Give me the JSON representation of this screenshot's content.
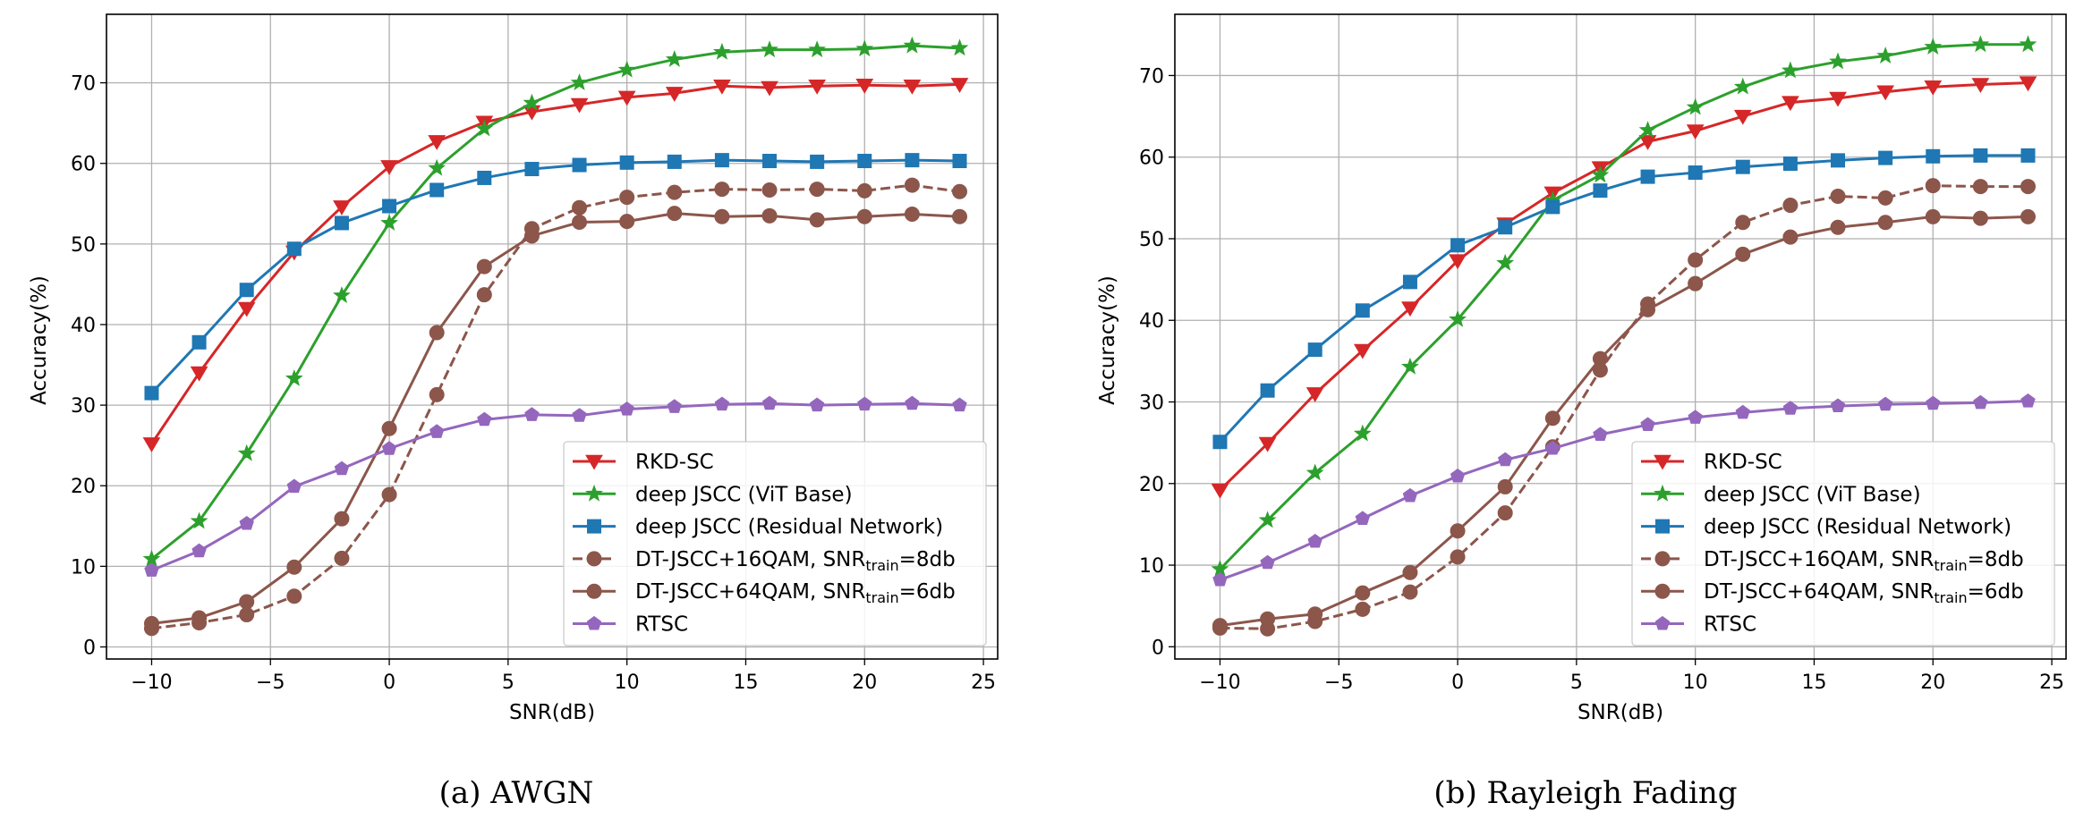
{
  "chart_data": [
    {
      "type": "line",
      "caption": "(a) AWGN",
      "xlabel": "SNR(dB)",
      "ylabel": "Accuracy(%)",
      "xlim": [
        -11.9,
        25.6
      ],
      "ylim": [
        -1.5,
        78.5
      ],
      "xticks": [
        -10,
        -5,
        0,
        5,
        10,
        15,
        20,
        25
      ],
      "xtick_labels": [
        "−10",
        "−5",
        "0",
        "5",
        "10",
        "15",
        "20",
        "25"
      ],
      "yticks": [
        0,
        10,
        20,
        30,
        40,
        50,
        60,
        70
      ],
      "grid": true,
      "legend_position": "lower-right",
      "x": [
        -10,
        -8,
        -6,
        -4,
        -2,
        0,
        2,
        4,
        6,
        8,
        10,
        12,
        14,
        16,
        18,
        20,
        22,
        24
      ],
      "series": [
        {
          "name": "RKD-SC",
          "color": "#d62728",
          "marker": "triangle-down",
          "dashed": false,
          "values": [
            25.2,
            34.0,
            42.0,
            49.0,
            54.6,
            59.6,
            62.7,
            65.1,
            66.4,
            67.3,
            68.2,
            68.7,
            69.6,
            69.4,
            69.6,
            69.7,
            69.6,
            69.8
          ]
        },
        {
          "name": "deep JSCC (ViT Base)",
          "color": "#2ca02c",
          "marker": "star",
          "dashed": false,
          "values": [
            10.9,
            15.6,
            24.0,
            33.3,
            43.6,
            52.6,
            59.4,
            64.3,
            67.5,
            70.0,
            71.6,
            72.9,
            73.8,
            74.1,
            74.1,
            74.2,
            74.6,
            74.3
          ]
        },
        {
          "name": "deep JSCC (Residual Network)",
          "color": "#1f77b4",
          "marker": "square",
          "dashed": false,
          "values": [
            31.5,
            37.8,
            44.3,
            49.4,
            52.6,
            54.7,
            56.7,
            58.2,
            59.3,
            59.8,
            60.1,
            60.2,
            60.4,
            60.3,
            60.2,
            60.3,
            60.4,
            60.3
          ]
        },
        {
          "name": "DT-JSCC+16QAM, SNR",
          "name_sub": "train",
          "name_suffix": "=8db",
          "color": "#8c564b",
          "marker": "circle",
          "dashed": true,
          "values": [
            2.3,
            3.0,
            4.0,
            6.3,
            11.0,
            18.9,
            31.3,
            43.7,
            51.9,
            54.5,
            55.8,
            56.4,
            56.8,
            56.7,
            56.8,
            56.6,
            57.3,
            56.5
          ]
        },
        {
          "name": "DT-JSCC+64QAM, SNR",
          "name_sub": "train",
          "name_suffix": "=6db",
          "color": "#8c564b",
          "marker": "circle",
          "dashed": false,
          "values": [
            2.9,
            3.6,
            5.6,
            9.9,
            15.9,
            27.1,
            39.0,
            47.2,
            51.0,
            52.7,
            52.8,
            53.8,
            53.4,
            53.5,
            53.0,
            53.4,
            53.7,
            53.4
          ]
        },
        {
          "name": "RTSC",
          "color": "#9467bd",
          "marker": "pentagon",
          "dashed": false,
          "values": [
            9.5,
            11.9,
            15.3,
            19.9,
            22.1,
            24.6,
            26.7,
            28.2,
            28.8,
            28.7,
            29.5,
            29.8,
            30.1,
            30.2,
            30.0,
            30.1,
            30.2,
            30.0
          ]
        }
      ]
    },
    {
      "type": "line",
      "caption": "(b) Rayleigh Fading",
      "xlabel": "SNR(dB)",
      "ylabel": "Accuracy(%)",
      "xlim": [
        -11.9,
        25.6
      ],
      "ylim": [
        -1.5,
        77.5
      ],
      "xticks": [
        -10,
        -5,
        0,
        5,
        10,
        15,
        20,
        25
      ],
      "xtick_labels": [
        "−10",
        "−5",
        "0",
        "5",
        "10",
        "15",
        "20",
        "25"
      ],
      "yticks": [
        0,
        10,
        20,
        30,
        40,
        50,
        60,
        70
      ],
      "grid": true,
      "legend_position": "lower-right",
      "x": [
        -10,
        -8,
        -6,
        -4,
        -2,
        0,
        2,
        4,
        6,
        8,
        10,
        12,
        14,
        16,
        18,
        20,
        22,
        24
      ],
      "series": [
        {
          "name": "RKD-SC",
          "color": "#d62728",
          "marker": "triangle-down",
          "dashed": false,
          "values": [
            19.2,
            24.9,
            31.0,
            36.3,
            41.5,
            47.3,
            51.8,
            55.6,
            58.7,
            61.9,
            63.2,
            65.0,
            66.7,
            67.2,
            68.0,
            68.6,
            68.9,
            69.1
          ]
        },
        {
          "name": "deep JSCC (ViT Base)",
          "color": "#2ca02c",
          "marker": "star",
          "dashed": false,
          "values": [
            9.5,
            15.5,
            21.3,
            26.1,
            34.3,
            40.1,
            47.0,
            54.7,
            57.8,
            63.3,
            66.1,
            68.6,
            70.6,
            71.7,
            72.4,
            73.5,
            73.8,
            73.8
          ]
        },
        {
          "name": "deep JSCC (Residual Network)",
          "color": "#1f77b4",
          "marker": "square",
          "dashed": false,
          "values": [
            25.1,
            31.4,
            36.4,
            41.2,
            44.7,
            49.2,
            51.4,
            53.9,
            55.9,
            57.6,
            58.1,
            58.8,
            59.2,
            59.6,
            59.9,
            60.1,
            60.2,
            60.2
          ]
        },
        {
          "name": "DT-JSCC+16QAM, SNR",
          "name_sub": "train",
          "name_suffix": "=8db",
          "color": "#8c564b",
          "marker": "circle",
          "dashed": true,
          "values": [
            2.3,
            2.2,
            3.1,
            4.6,
            6.7,
            11.0,
            16.4,
            24.5,
            33.9,
            42.0,
            47.4,
            52.0,
            54.1,
            55.2,
            55.0,
            56.5,
            56.4,
            56.4
          ]
        },
        {
          "name": "DT-JSCC+64QAM, SNR",
          "name_sub": "train",
          "name_suffix": "=6db",
          "color": "#8c564b",
          "marker": "circle",
          "dashed": false,
          "values": [
            2.6,
            3.4,
            4.0,
            6.6,
            9.1,
            14.2,
            19.6,
            28.0,
            35.3,
            41.3,
            44.5,
            48.1,
            50.2,
            51.4,
            52.0,
            52.7,
            52.5,
            52.7
          ]
        },
        {
          "name": "RTSC",
          "color": "#9467bd",
          "marker": "pentagon",
          "dashed": false,
          "values": [
            8.2,
            10.3,
            12.9,
            15.7,
            18.5,
            20.9,
            22.9,
            24.3,
            26.0,
            27.2,
            28.1,
            28.7,
            29.2,
            29.5,
            29.7,
            29.8,
            29.9,
            30.1
          ]
        }
      ]
    }
  ]
}
